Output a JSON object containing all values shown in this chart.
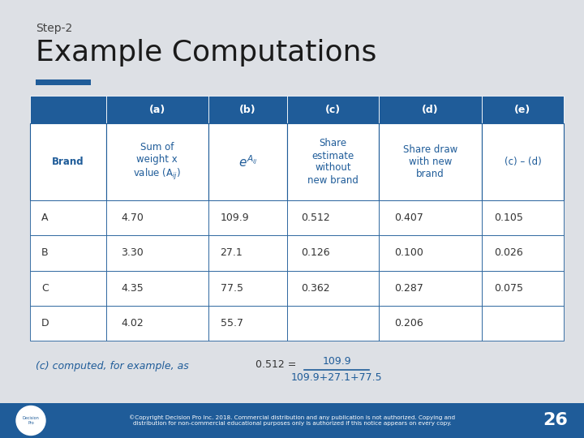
{
  "title_top": "Step-2",
  "title_main": "Example Computations",
  "bg_color": "#dde0e5",
  "header_color": "#1f5c99",
  "header_text_color": "#ffffff",
  "table_border_color": "#1f5c99",
  "subheader_text_color": "#1f5c99",
  "data_text_color": "#333333",
  "accent_bar_color": "#1f5c99",
  "col_headers": [
    "",
    "(a)",
    "(b)",
    "(c)",
    "(d)",
    "(e)"
  ],
  "rows": [
    [
      "A",
      "4.70",
      "109.9",
      "0.512",
      "0.407",
      "0.105"
    ],
    [
      "B",
      "3.30",
      "27.1",
      "0.126",
      "0.100",
      "0.026"
    ],
    [
      "C",
      "4.35",
      "77.5",
      "0.362",
      "0.287",
      "0.075"
    ],
    [
      "D",
      "4.02",
      "55.7",
      "",
      "0.206",
      ""
    ]
  ],
  "formula_label": "(c) computed, for example, as",
  "formula_numerator": "109.9",
  "formula_denominator": "109.9+27.1+77.5",
  "formula_lhs": "0.512 =",
  "footer_text_line1": "©Copyright Decision Pro Inc. 2018. Commercial distribution and any publication is not authorized. Copying and",
  "footer_text_line2": "distribution for non-commercial educational purposes only is authorized if this notice appears on every copy.",
  "page_number": "26",
  "footer_bg": "#1f5c99",
  "title_color": "#1a1a1a",
  "step_color": "#444444"
}
